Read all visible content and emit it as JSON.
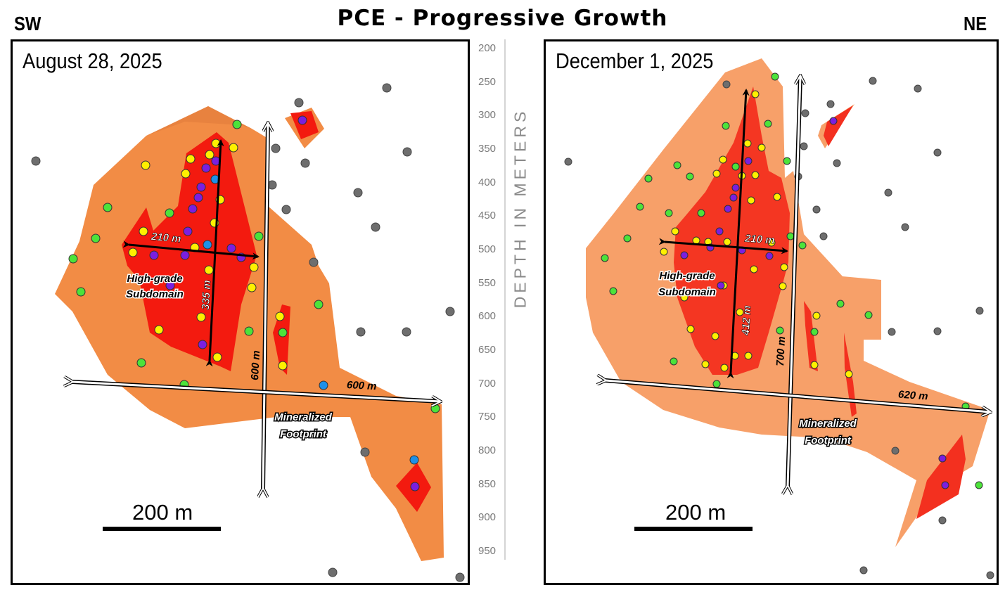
{
  "title": "PCE - Progressive Growth",
  "direction_left": "SW",
  "direction_right": "NE",
  "depth_axis": {
    "label": "DEPTH IN METERS",
    "ticks": [
      "200",
      "250",
      "300",
      "350",
      "400",
      "450",
      "500",
      "550",
      "600",
      "650",
      "700",
      "750",
      "800",
      "850",
      "900",
      "950"
    ]
  },
  "panels": [
    {
      "date": "August 28, 2025",
      "scale_label": "200 m",
      "high_grade_width": "210 m",
      "high_grade_height": "335 m",
      "footprint_width": "600 m",
      "footprint_height": "600 m",
      "high_grade_label_line1": "High-grade",
      "high_grade_label_line2": "Subdomain",
      "footprint_label_line1": "Mineralized",
      "footprint_label_line2": "Footprint"
    },
    {
      "date": "December 1, 2025",
      "scale_label": "200 m",
      "high_grade_width": "210 m",
      "high_grade_height": "412 m",
      "footprint_width": "620 m",
      "footprint_height": "700 m",
      "high_grade_label_line1": "High-grade",
      "high_grade_label_line2": "Subdomain",
      "footprint_label_line1": "Mineralized",
      "footprint_label_line2": "Footprint"
    }
  ],
  "colors": {
    "footprint_orange": "#F28C45",
    "footprint_orange_light": "#F7A069",
    "high_grade_red": "#F31A0F",
    "drill_gray": "#6E6E6E",
    "drill_yellow": "#FFF000",
    "drill_green": "#4CE33A",
    "drill_purple": "#7A1FE0",
    "drill_blue": "#1E90E8"
  }
}
